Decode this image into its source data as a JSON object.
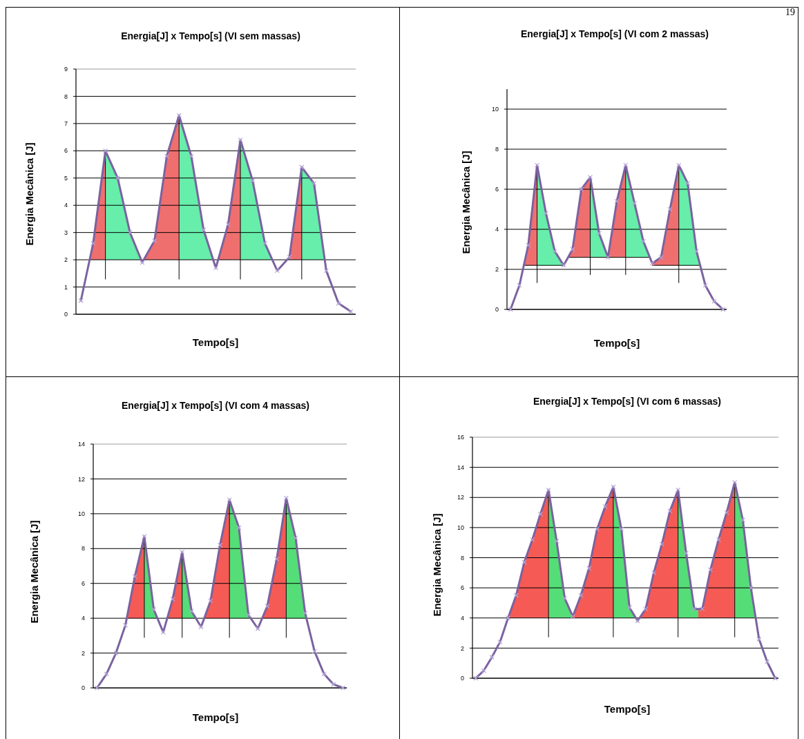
{
  "chart_data": [
    {
      "type": "line",
      "title": "Energia[J] x Tempo[s] (VI sem massas)",
      "xlabel": "Tempo[s]",
      "ylabel": "Energia Mecânica [J]",
      "categories": [
        null,
        null,
        null,
        null,
        null,
        null,
        null,
        null,
        null,
        null,
        null,
        null,
        null,
        null,
        null,
        null,
        null,
        null,
        null,
        null,
        null,
        null,
        null
      ],
      "ylim": [
        0,
        9
      ],
      "yticks": [
        0,
        1,
        2,
        3,
        4,
        5,
        6,
        7,
        8,
        9
      ],
      "grid": "y",
      "tick_labels": "y",
      "marker": "cross",
      "series": [
        {
          "color": "#7b62a0",
          "values": [
            0.5,
            2.6,
            6.0,
            5.0,
            3.0,
            1.9,
            2.7,
            5.8,
            7.3,
            5.8,
            3.1,
            1.7,
            3.3,
            6.4,
            4.9,
            2.6,
            1.6,
            2.1,
            5.4,
            4.8,
            1.6,
            0.4,
            0.1
          ]
        }
      ]
    },
    {
      "type": "line",
      "title": "Energia[J] x Tempo[s] (VI com 2 massas)",
      "xlabel": "Tempo[s]",
      "ylabel": "Energia Mecânica [J]",
      "categories": [
        null,
        null,
        null,
        null,
        null,
        null,
        null,
        null,
        null,
        null,
        null,
        null,
        null,
        null,
        null,
        null,
        null,
        null,
        null,
        null,
        null,
        null,
        null,
        null,
        null
      ],
      "ylim": [
        0,
        11
      ],
      "yticks": [
        0,
        2,
        4,
        6,
        8,
        10
      ],
      "grid": "y",
      "tick_labels": "y",
      "marker": "cross",
      "annotations": [
        "19"
      ],
      "ref_lines": [
        {
          "axis": "y",
          "value": 2.2
        },
        {
          "axis": "y",
          "value": 2.6
        }
      ],
      "series": [
        {
          "color": "#7b62a0",
          "values": [
            0,
            1.2,
            3.2,
            7.2,
            4.8,
            2.9,
            2.2,
            3.0,
            6.0,
            6.6,
            3.8,
            2.6,
            5.4,
            7.2,
            5.3,
            3.4,
            2.3,
            2.6,
            5.0,
            7.2,
            6.3,
            2.9,
            1.2,
            0.4,
            0
          ]
        }
      ]
    },
    {
      "type": "line",
      "title": "Energia[J] x Tempo[s] (VI com 4 massas)",
      "xlabel": "Tempo[s]",
      "ylabel": "Energia Mecânica [J]",
      "categories": [
        null,
        null,
        null,
        null,
        null,
        null,
        null,
        null,
        null,
        null,
        null,
        null,
        null,
        null,
        null,
        null,
        null,
        null,
        null,
        null,
        null,
        null,
        null,
        null,
        null,
        null,
        null
      ],
      "ylim": [
        0,
        14
      ],
      "yticks": [
        0,
        2,
        4,
        6,
        8,
        10,
        12,
        14
      ],
      "grid": "y",
      "tick_labels": "y",
      "marker": "cross",
      "series": [
        {
          "color": "#7b62a0",
          "values": [
            0,
            0.8,
            2.0,
            3.6,
            6.4,
            8.7,
            4.5,
            3.2,
            5.1,
            7.8,
            4.4,
            3.5,
            5.0,
            8.2,
            10.8,
            9.2,
            4.2,
            3.4,
            4.7,
            7.4,
            10.9,
            8.6,
            4.3,
            2.1,
            0.8,
            0.2,
            0
          ]
        }
      ]
    },
    {
      "type": "line",
      "title": "Energia[J] x Tempo[s] (VI com 6 massas)",
      "xlabel": "Tempo[s]",
      "ylabel": "Energia Mecânica [J]",
      "categories": [
        null,
        null,
        null,
        null,
        null,
        null,
        null,
        null,
        null,
        null,
        null,
        null,
        null,
        null,
        null,
        null,
        null,
        null,
        null,
        null,
        null,
        null,
        null,
        null,
        null,
        null,
        null,
        null,
        null,
        null,
        null,
        null,
        null,
        null,
        null,
        null,
        null,
        null
      ],
      "ylim": [
        0,
        16
      ],
      "yticks": [
        0,
        2,
        4,
        6,
        8,
        10,
        12,
        14,
        16
      ],
      "grid": "y",
      "tick_labels": "y",
      "marker": "cross",
      "series": [
        {
          "color": "#7b62a0",
          "values": [
            0,
            0.5,
            1.4,
            2.4,
            4.0,
            5.5,
            7.7,
            9.2,
            10.9,
            12.5,
            9.1,
            5.3,
            4.1,
            5.5,
            7.3,
            9.9,
            11.4,
            12.7,
            9.9,
            4.7,
            3.8,
            4.6,
            7.0,
            8.9,
            11.1,
            12.5,
            8.3,
            4.6,
            4.6,
            7.2,
            9.2,
            11.0,
            13.0,
            10.5,
            6.0,
            2.6,
            1.1,
            0
          ]
        }
      ]
    }
  ]
}
